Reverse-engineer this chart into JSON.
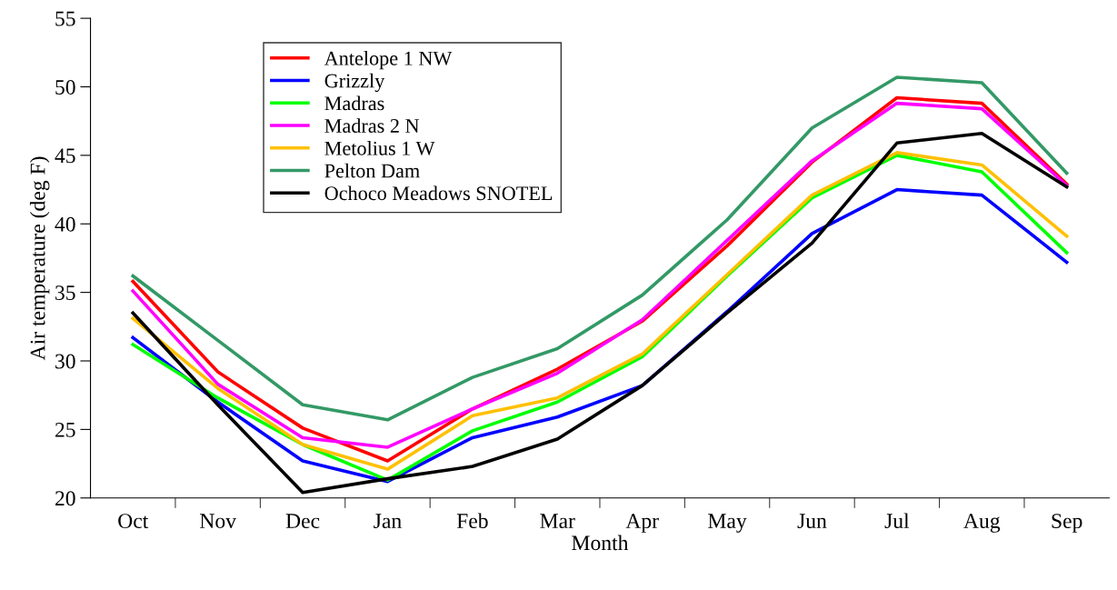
{
  "chart_data": {
    "type": "line",
    "xlabel": "Month",
    "ylabel": "Air temperature (deg F)",
    "categories": [
      "Oct",
      "Nov",
      "Dec",
      "Jan",
      "Feb",
      "Mar",
      "Apr",
      "May",
      "Jun",
      "Jul",
      "Aug",
      "Sep"
    ],
    "ylim": [
      20,
      55
    ],
    "yticks": [
      20,
      25,
      30,
      35,
      40,
      45,
      50,
      55
    ],
    "grid": false,
    "legend": "top left",
    "marker": "none",
    "line_style": "solid",
    "series": [
      {
        "name": "Antelope 1 NW",
        "color": "#ff0000",
        "values": [
          35.8,
          29.2,
          25.1,
          22.7,
          26.5,
          29.4,
          32.9,
          38.4,
          44.5,
          49.2,
          48.8,
          42.9
        ]
      },
      {
        "name": "Grizzly",
        "color": "#0000ff",
        "values": [
          31.7,
          27.0,
          22.7,
          21.2,
          24.4,
          25.9,
          28.2,
          33.6,
          39.3,
          42.5,
          42.1,
          37.2
        ]
      },
      {
        "name": "Madras",
        "color": "#00ff00",
        "values": [
          31.2,
          27.3,
          23.9,
          21.3,
          24.9,
          27.0,
          30.3,
          36.2,
          41.9,
          45.0,
          43.8,
          37.9
        ]
      },
      {
        "name": "Madras 2 N",
        "color": "#ff00ff",
        "values": [
          35.1,
          28.3,
          24.4,
          23.7,
          26.5,
          29.1,
          33.0,
          38.8,
          44.6,
          48.8,
          48.4,
          42.8
        ]
      },
      {
        "name": "Metolius 1 W",
        "color": "#ffc000",
        "values": [
          33.1,
          28.0,
          23.9,
          22.1,
          26.0,
          27.3,
          30.5,
          36.3,
          42.1,
          45.2,
          44.3,
          39.1
        ]
      },
      {
        "name": "Pelton Dam",
        "color": "#339966",
        "values": [
          36.2,
          31.5,
          26.8,
          25.7,
          28.8,
          30.9,
          34.8,
          40.3,
          47.0,
          50.7,
          50.3,
          43.7
        ]
      },
      {
        "name": "Ochoco Meadows SNOTEL",
        "color": "#000000",
        "values": [
          33.5,
          26.8,
          20.4,
          21.4,
          22.3,
          24.3,
          28.2,
          33.5,
          38.6,
          45.9,
          46.6,
          42.7
        ]
      }
    ]
  }
}
